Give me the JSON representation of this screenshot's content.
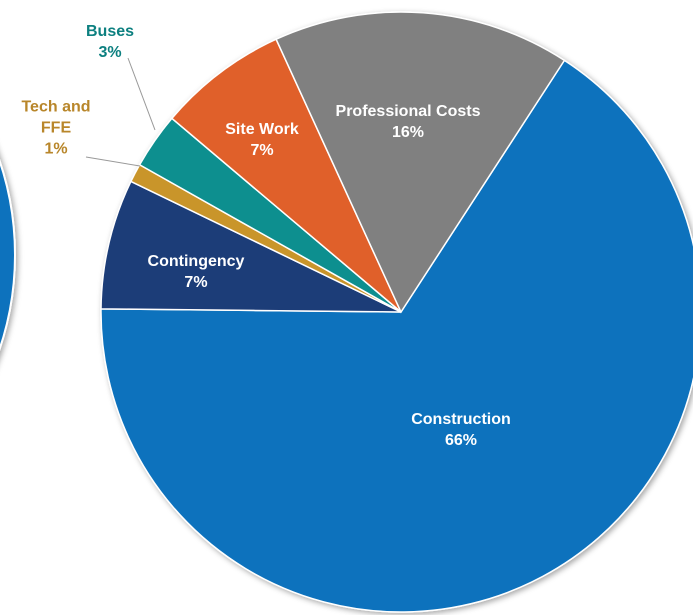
{
  "chart_data": {
    "type": "pie",
    "categories": [
      "Construction",
      "Contingency",
      "Tech and FFE",
      "Buses",
      "Site Work",
      "Professional Costs"
    ],
    "values": [
      66,
      7,
      1,
      3,
      7,
      16
    ],
    "value_labels": [
      "66%",
      "7%",
      "1%",
      "3%",
      "7%",
      "16%"
    ],
    "colors": [
      "#0b72bd",
      "#1f3c78",
      "#c9952c",
      "#0d8f8f",
      "#e0612a",
      "#808080"
    ]
  }
}
